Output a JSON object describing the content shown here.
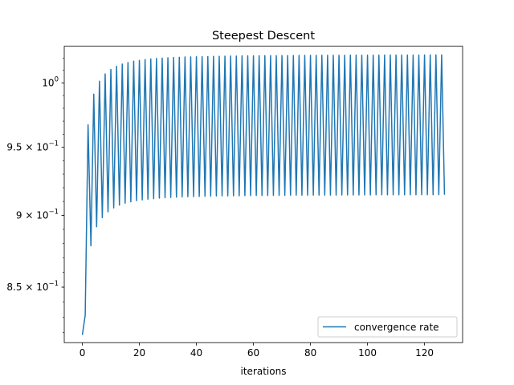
{
  "chart_data": {
    "type": "line",
    "title": "Steepest Descent",
    "xlabel": "iterations",
    "ylabel": "",
    "yscale": "log",
    "xlim": [
      -6.35,
      133.35
    ],
    "ylim": [
      0.8133,
      1.0296
    ],
    "xticks": [
      0,
      20,
      40,
      60,
      80,
      100,
      120
    ],
    "xtick_labels": [
      "0",
      "20",
      "40",
      "60",
      "80",
      "100",
      "120"
    ],
    "yticks": [
      {
        "value": 1.0,
        "mantissa": "10",
        "exponent": "0"
      },
      {
        "value": 0.95,
        "mantissa": "9.5 × 10",
        "exponent": "−1"
      },
      {
        "value": 0.9,
        "mantissa": "9 × 10",
        "exponent": "−1"
      },
      {
        "value": 0.85,
        "mantissa": "8.5 × 10",
        "exponent": "−1"
      }
    ],
    "grid": false,
    "legend_position": "lower-right",
    "series": [
      {
        "name": "convergence rate",
        "color": "#1f77b4",
        "x_start": 0,
        "x_step": 1,
        "values": [
          0.8183,
          0.8313,
          0.9672,
          0.8784,
          0.9911,
          0.8918,
          1.0013,
          0.8983,
          1.0072,
          0.9025,
          1.0108,
          0.9053,
          1.0133,
          0.9073,
          1.0151,
          0.9087,
          1.0164,
          0.9097,
          1.0174,
          0.9105,
          1.0181,
          0.9111,
          1.0187,
          0.9116,
          1.0192,
          0.912,
          1.0196,
          0.9124,
          1.0199,
          0.9127,
          1.0202,
          0.9129,
          1.0204,
          0.9131,
          1.0206,
          0.9133,
          1.0208,
          0.9134,
          1.0209,
          0.9135,
          1.021,
          0.9136,
          1.0211,
          0.9137,
          1.0212,
          0.9138,
          1.0213,
          0.9139,
          1.0214,
          0.914,
          1.0215,
          0.914,
          1.0216,
          0.9141,
          1.0216,
          0.9141,
          1.0217,
          0.9142,
          1.0217,
          0.9142,
          1.0218,
          0.9143,
          1.0218,
          0.9143,
          1.0219,
          0.9143,
          1.0219,
          0.9144,
          1.0219,
          0.9144,
          1.022,
          0.9144,
          1.022,
          0.9145,
          1.022,
          0.9145,
          1.0221,
          0.9145,
          1.0221,
          0.9145,
          1.0221,
          0.9146,
          1.0221,
          0.9146,
          1.0222,
          0.9146,
          1.0222,
          0.9146,
          1.0222,
          0.9146,
          1.0222,
          0.9147,
          1.0222,
          0.9147,
          1.0223,
          0.9147,
          1.0223,
          0.9147,
          1.0223,
          0.9147,
          1.0223,
          0.9147,
          1.0223,
          0.9148,
          1.0223,
          0.9148,
          1.0224,
          0.9148,
          1.0224,
          0.9148,
          1.0224,
          0.9148,
          1.0224,
          0.9148,
          1.0224,
          0.9148,
          1.0224,
          0.9148,
          1.0224,
          0.9149,
          1.0225,
          0.9149,
          1.0225,
          0.9149,
          1.0225,
          0.9149,
          1.0225,
          0.9149
        ]
      }
    ]
  }
}
